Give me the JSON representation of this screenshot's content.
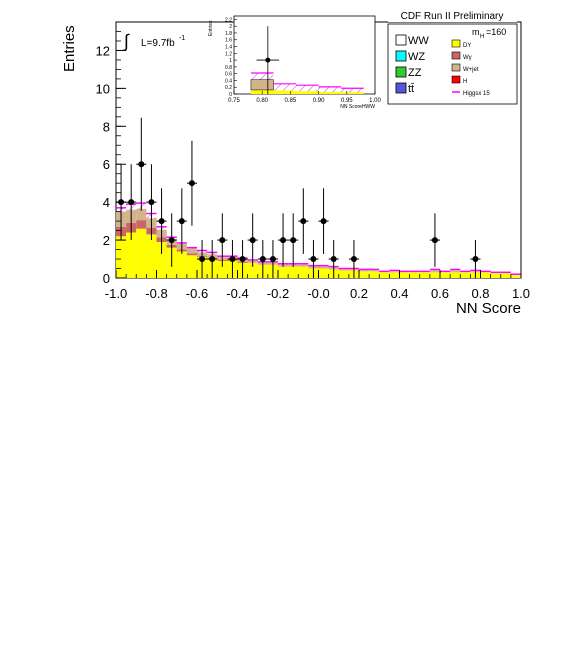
{
  "chart_data": {
    "type": "bar",
    "title": "CDF Run II Preliminary",
    "xlabel": "NN Score",
    "ylabel": "Entries",
    "xlim": [
      -1.0,
      1.0
    ],
    "ylim": [
      0,
      13.5
    ],
    "x_ticks": [
      "-1.0",
      "-0.8",
      "-0.6",
      "-0.4",
      "-0.2",
      "-0.0",
      "0.2",
      "0.4",
      "0.6",
      "0.8",
      "1.0"
    ],
    "y_ticks": [
      "0",
      "2",
      "4",
      "6",
      "8",
      "10",
      "12"
    ],
    "luminosity_label": "L=9.7fb",
    "luminosity_exponent": "-1",
    "mass_label": "m",
    "mass_subscript": "H",
    "mass_value": "=160",
    "grid": false,
    "legend_placement": "top-right",
    "bin_width": 0.05,
    "bins_x": [
      -1.0,
      -0.95,
      -0.9,
      -0.85,
      -0.8,
      -0.75,
      -0.7,
      -0.65,
      -0.6,
      -0.55,
      -0.5,
      -0.45,
      -0.4,
      -0.35,
      -0.3,
      -0.25,
      -0.2,
      -0.15,
      -0.1,
      -0.05,
      0.0,
      0.05,
      0.1,
      0.15,
      0.2,
      0.25,
      0.3,
      0.35,
      0.4,
      0.45,
      0.5,
      0.55,
      0.6,
      0.65,
      0.7,
      0.75,
      0.8,
      0.85,
      0.9,
      0.95
    ],
    "series": [
      {
        "name": "DY",
        "color": "#ffff00",
        "values": [
          2.2,
          2.4,
          2.6,
          2.3,
          1.9,
          1.6,
          1.4,
          1.2,
          1.1,
          1.0,
          0.9,
          0.9,
          0.8,
          0.8,
          0.7,
          0.7,
          0.6,
          0.6,
          0.6,
          0.5,
          0.5,
          0.45,
          0.4,
          0.4,
          0.35,
          0.35,
          0.3,
          0.3,
          0.3,
          0.3,
          0.3,
          0.3,
          0.3,
          0.3,
          0.3,
          0.3,
          0.3,
          0.25,
          0.25,
          0.15
        ]
      },
      {
        "name": "Wγ",
        "color": "#cc6666",
        "values": [
          0.5,
          0.5,
          0.45,
          0.35,
          0.25,
          0.15,
          0.1,
          0.1,
          0.05,
          0.05,
          0.05,
          0.05,
          0.05,
          0.0,
          0.0,
          0.0,
          0.0,
          0.0,
          0.0,
          0.0,
          0.0,
          0.0,
          0.0,
          0.0,
          0.0,
          0.0,
          0.0,
          0.0,
          0.0,
          0.0,
          0.0,
          0.0,
          0.0,
          0.0,
          0.0,
          0.0,
          0.0,
          0.0,
          0.0,
          0.0
        ]
      },
      {
        "name": "W+jet",
        "color": "#d2b48c",
        "values": [
          0.8,
          0.7,
          0.6,
          0.5,
          0.4,
          0.3,
          0.3,
          0.25,
          0.2,
          0.2,
          0.15,
          0.15,
          0.15,
          0.1,
          0.1,
          0.1,
          0.1,
          0.1,
          0.1,
          0.1,
          0.1,
          0.1,
          0.05,
          0.05,
          0.05,
          0.05,
          0.0,
          0.05,
          0.0,
          0.0,
          0.0,
          0.1,
          0.0,
          0.1,
          0.0,
          0.05,
          0.0,
          0.0,
          0.0,
          0.0
        ]
      },
      {
        "name": "WW",
        "color": "#ffffff",
        "values": [
          0.0,
          0.0,
          0.0,
          0.0,
          0.0,
          0.0,
          0.0,
          0.0,
          0.0,
          0.0,
          0.0,
          0.0,
          0.0,
          0.0,
          0.0,
          0.0,
          0.0,
          0.0,
          0.0,
          0.0,
          0.0,
          0.0,
          0.0,
          0.0,
          0.0,
          0.0,
          0.0,
          0.0,
          0.0,
          0.0,
          0.0,
          0.0,
          0.0,
          0.0,
          0.0,
          0.0,
          0.0,
          0.0,
          0.0,
          0.0
        ]
      },
      {
        "name": "Higgsx 15",
        "color": "#ff00ff",
        "values": [
          3.7,
          3.9,
          3.95,
          3.4,
          2.7,
          2.15,
          1.85,
          1.6,
          1.45,
          1.35,
          1.15,
          1.15,
          1.05,
          0.95,
          0.85,
          0.85,
          0.75,
          0.75,
          0.75,
          0.65,
          0.65,
          0.6,
          0.5,
          0.5,
          0.45,
          0.45,
          0.35,
          0.4,
          0.35,
          0.35,
          0.35,
          0.45,
          0.35,
          0.45,
          0.35,
          0.4,
          0.35,
          0.3,
          0.3,
          0.2
        ]
      }
    ],
    "data_points": {
      "x": [
        -0.975,
        -0.925,
        -0.875,
        -0.825,
        -0.775,
        -0.725,
        -0.675,
        -0.625,
        -0.575,
        -0.525,
        -0.475,
        -0.425,
        -0.375,
        -0.325,
        -0.275,
        -0.225,
        -0.175,
        -0.125,
        -0.075,
        -0.025,
        0.025,
        0.075,
        0.175,
        0.575,
        0.775
      ],
      "y": [
        4,
        4,
        6,
        4,
        3,
        2,
        3,
        5,
        1,
        1,
        2,
        1,
        1,
        2,
        1,
        1,
        2,
        2,
        3,
        1,
        3,
        1,
        1,
        2,
        1
      ],
      "yerr": [
        2.0,
        2.0,
        2.45,
        2.0,
        1.73,
        1.41,
        1.73,
        2.24,
        1.0,
        1.0,
        1.41,
        1.0,
        1.0,
        1.41,
        1.0,
        1.0,
        1.41,
        1.41,
        1.73,
        1.0,
        1.73,
        1.0,
        1.0,
        1.41,
        1.0
      ]
    },
    "legend": [
      {
        "label": "WW",
        "color": "#ffffff"
      },
      {
        "label": "WZ",
        "color": "#00ffff"
      },
      {
        "label": "ZZ",
        "color": "#33cc33"
      },
      {
        "label": "tt̄",
        "color": "#5555dd"
      },
      {
        "label": "DY",
        "color": "#ffff00"
      },
      {
        "label": "Wγ",
        "color": "#cc6666"
      },
      {
        "label": "W+jet",
        "color": "#d2b48c"
      },
      {
        "label": "H",
        "color": "#ff0000"
      },
      {
        "label": "Higgsx 15",
        "color": "#ff00ff"
      }
    ],
    "inset": {
      "xlabel": "NN ScoreHWW",
      "ylabel": "Entries",
      "xlim": [
        0.75,
        1.0
      ],
      "ylim": [
        0,
        2.3
      ],
      "x_ticks": [
        "0.75",
        "0.80",
        "0.85",
        "0.90",
        "0.95",
        "1.00"
      ],
      "y_ticks": [
        "0",
        "0.2",
        "0.4",
        "0.6",
        "0.8",
        "1",
        "1.2",
        "1.4",
        "1.6",
        "1.8",
        "2",
        "2.2"
      ],
      "bin_width": 0.04,
      "bins_x": [
        0.78,
        0.82,
        0.86,
        0.9,
        0.94
      ],
      "dy": [
        0.12,
        0.1,
        0.08,
        0.06,
        0.05
      ],
      "wjet": [
        0.3,
        0.0,
        0.0,
        0.0,
        0.0
      ],
      "higgs": [
        0.2,
        0.2,
        0.18,
        0.15,
        0.12
      ],
      "data_point": {
        "x": 0.81,
        "y": 1.0,
        "yerr": 1.0,
        "xerr": 0.02
      }
    }
  }
}
